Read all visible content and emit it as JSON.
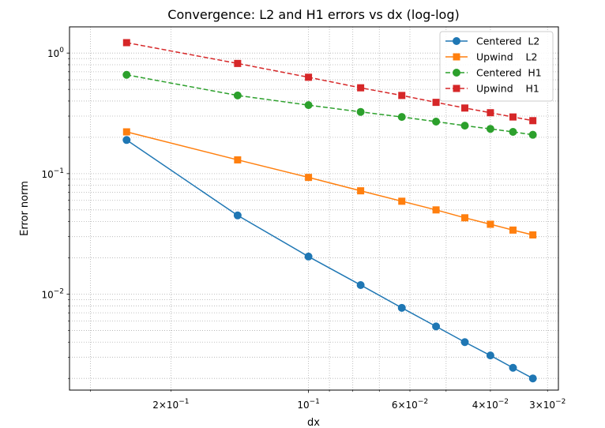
{
  "chart_data": {
    "type": "line",
    "title": "Convergence: L2 and H1 errors vs dx (log-log)",
    "xlabel": "dx",
    "ylabel": "Error norm",
    "x_scale": "log",
    "y_scale": "log",
    "x_reversed": true,
    "xlim": [
      0.3333,
      0.0284
    ],
    "ylim": [
      0.0016,
      1.65
    ],
    "grid": "both-major-and-minor-dotted",
    "legend_position": "top-right",
    "x_ticks": [
      {
        "value": 0.2,
        "base": "2×10",
        "exp": "−1"
      },
      {
        "value": 0.1,
        "base": "10",
        "exp": "−1"
      },
      {
        "value": 0.06,
        "base": "6×10",
        "exp": "−2"
      },
      {
        "value": 0.04,
        "base": "4×10",
        "exp": "−2"
      },
      {
        "value": 0.03,
        "base": "3×10",
        "exp": "−2"
      }
    ],
    "y_ticks": [
      {
        "value": 1,
        "base": "10",
        "exp": "0"
      },
      {
        "value": 0.1,
        "base": "10",
        "exp": "−1"
      },
      {
        "value": 0.01,
        "base": "10",
        "exp": "−2"
      }
    ],
    "x": [
      0.25,
      0.1429,
      0.1,
      0.0769,
      0.0625,
      0.0526,
      0.0455,
      0.04,
      0.0357,
      0.0323
    ],
    "series": [
      {
        "name": "Centered  L2",
        "color": "#1f77b4",
        "marker": "circle",
        "dashed": false,
        "values": [
          0.19,
          0.045,
          0.0205,
          0.0119,
          0.0077,
          0.0054,
          0.004,
          0.0031,
          0.00245,
          0.002
        ]
      },
      {
        "name": "Upwind    L2",
        "color": "#ff7f0e",
        "marker": "square",
        "dashed": false,
        "values": [
          0.222,
          0.13,
          0.093,
          0.072,
          0.059,
          0.05,
          0.043,
          0.038,
          0.034,
          0.031
        ]
      },
      {
        "name": "Centered  H1",
        "color": "#2ca02c",
        "marker": "circle",
        "dashed": true,
        "values": [
          0.66,
          0.445,
          0.37,
          0.325,
          0.295,
          0.27,
          0.25,
          0.235,
          0.222,
          0.21
        ]
      },
      {
        "name": "Upwind    H1",
        "color": "#d62728",
        "marker": "square",
        "dashed": true,
        "values": [
          1.22,
          0.82,
          0.63,
          0.515,
          0.445,
          0.39,
          0.35,
          0.32,
          0.295,
          0.275
        ]
      }
    ]
  }
}
